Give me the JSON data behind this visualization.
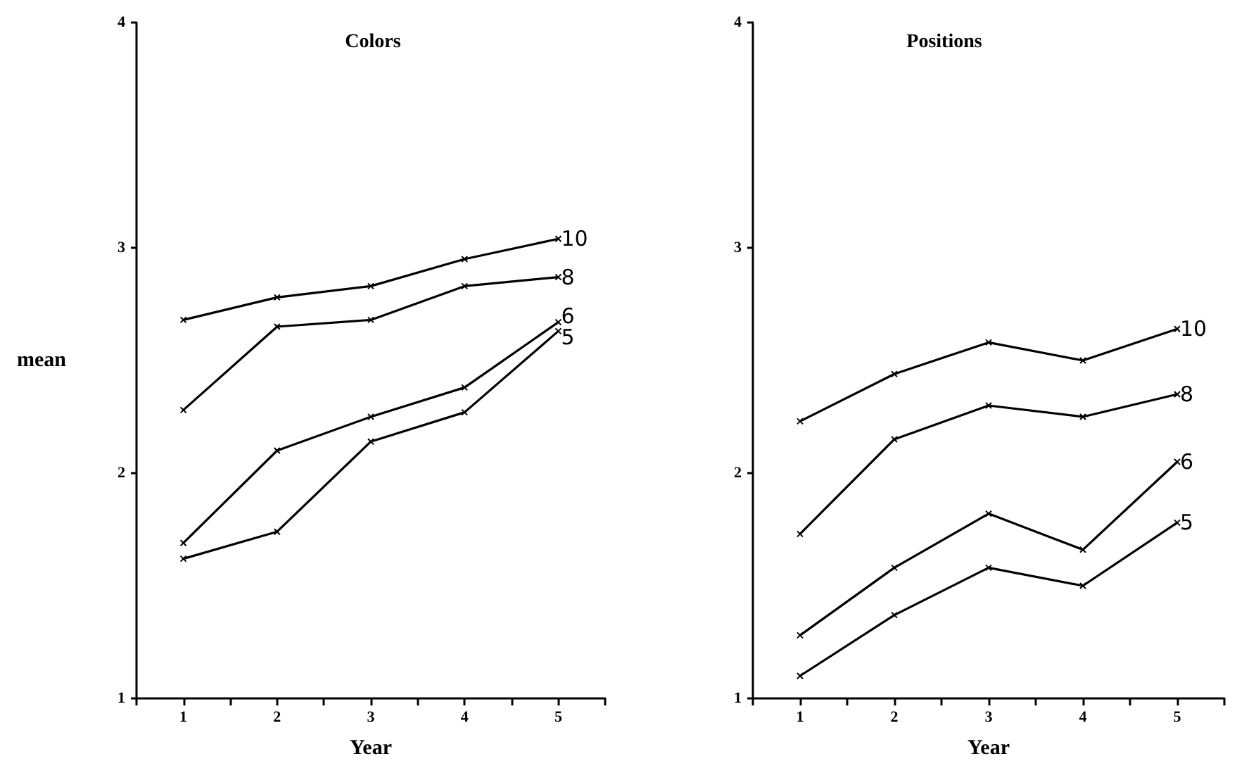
{
  "chart_data": [
    {
      "type": "line",
      "title": "Colors",
      "xlabel": "Year",
      "ylabel": "mean",
      "marker": "cross",
      "x": [
        1,
        2,
        3,
        4,
        5
      ],
      "xlim": [
        0.5,
        5.5
      ],
      "xticks": [
        {
          "value": 0.5,
          "label": null
        },
        1,
        {
          "value": 1.5,
          "label": null
        },
        2,
        {
          "value": 2.5,
          "label": null
        },
        3,
        {
          "value": 3.5,
          "label": null
        },
        4,
        {
          "value": 4.5,
          "label": null
        },
        5,
        {
          "value": 5.5,
          "label": null
        }
      ],
      "ylim": [
        1,
        4
      ],
      "yticks": [
        1,
        2,
        3,
        4
      ],
      "series": [
        {
          "name": "10",
          "color": "#000000",
          "values": [
            2.68,
            2.78,
            2.83,
            2.95,
            3.04
          ]
        },
        {
          "name": "8",
          "color": "#000000",
          "values": [
            2.28,
            2.65,
            2.68,
            2.83,
            2.87
          ]
        },
        {
          "name": "6",
          "color": "#000000",
          "values": [
            1.69,
            2.1,
            2.25,
            2.38,
            2.67
          ]
        },
        {
          "name": "5",
          "color": "#000000",
          "values": [
            1.62,
            1.74,
            2.14,
            2.27,
            2.63
          ]
        }
      ]
    },
    {
      "type": "line",
      "title": "Positions",
      "xlabel": "Year",
      "marker": "cross",
      "x": [
        1,
        2,
        3,
        4,
        5
      ],
      "xlim": [
        0.5,
        5.5
      ],
      "xticks": [
        {
          "value": 0.5,
          "label": null
        },
        1,
        {
          "value": 1.5,
          "label": null
        },
        2,
        {
          "value": 2.5,
          "label": null
        },
        3,
        {
          "value": 3.5,
          "label": null
        },
        4,
        {
          "value": 4.5,
          "label": null
        },
        5,
        {
          "value": 5.5,
          "label": null
        }
      ],
      "ylim": [
        1,
        4
      ],
      "yticks": [
        1,
        2,
        3,
        4
      ],
      "series": [
        {
          "name": "10",
          "color": "#000000",
          "values": [
            2.23,
            2.44,
            2.58,
            2.5,
            2.64
          ]
        },
        {
          "name": "8",
          "color": "#000000",
          "values": [
            1.73,
            2.15,
            2.3,
            2.25,
            2.35
          ]
        },
        {
          "name": "6",
          "color": "#000000",
          "values": [
            1.28,
            1.58,
            1.82,
            1.66,
            2.05
          ]
        },
        {
          "name": "5",
          "color": "#000000",
          "values": [
            1.1,
            1.37,
            1.58,
            1.5,
            1.78
          ]
        }
      ]
    }
  ]
}
